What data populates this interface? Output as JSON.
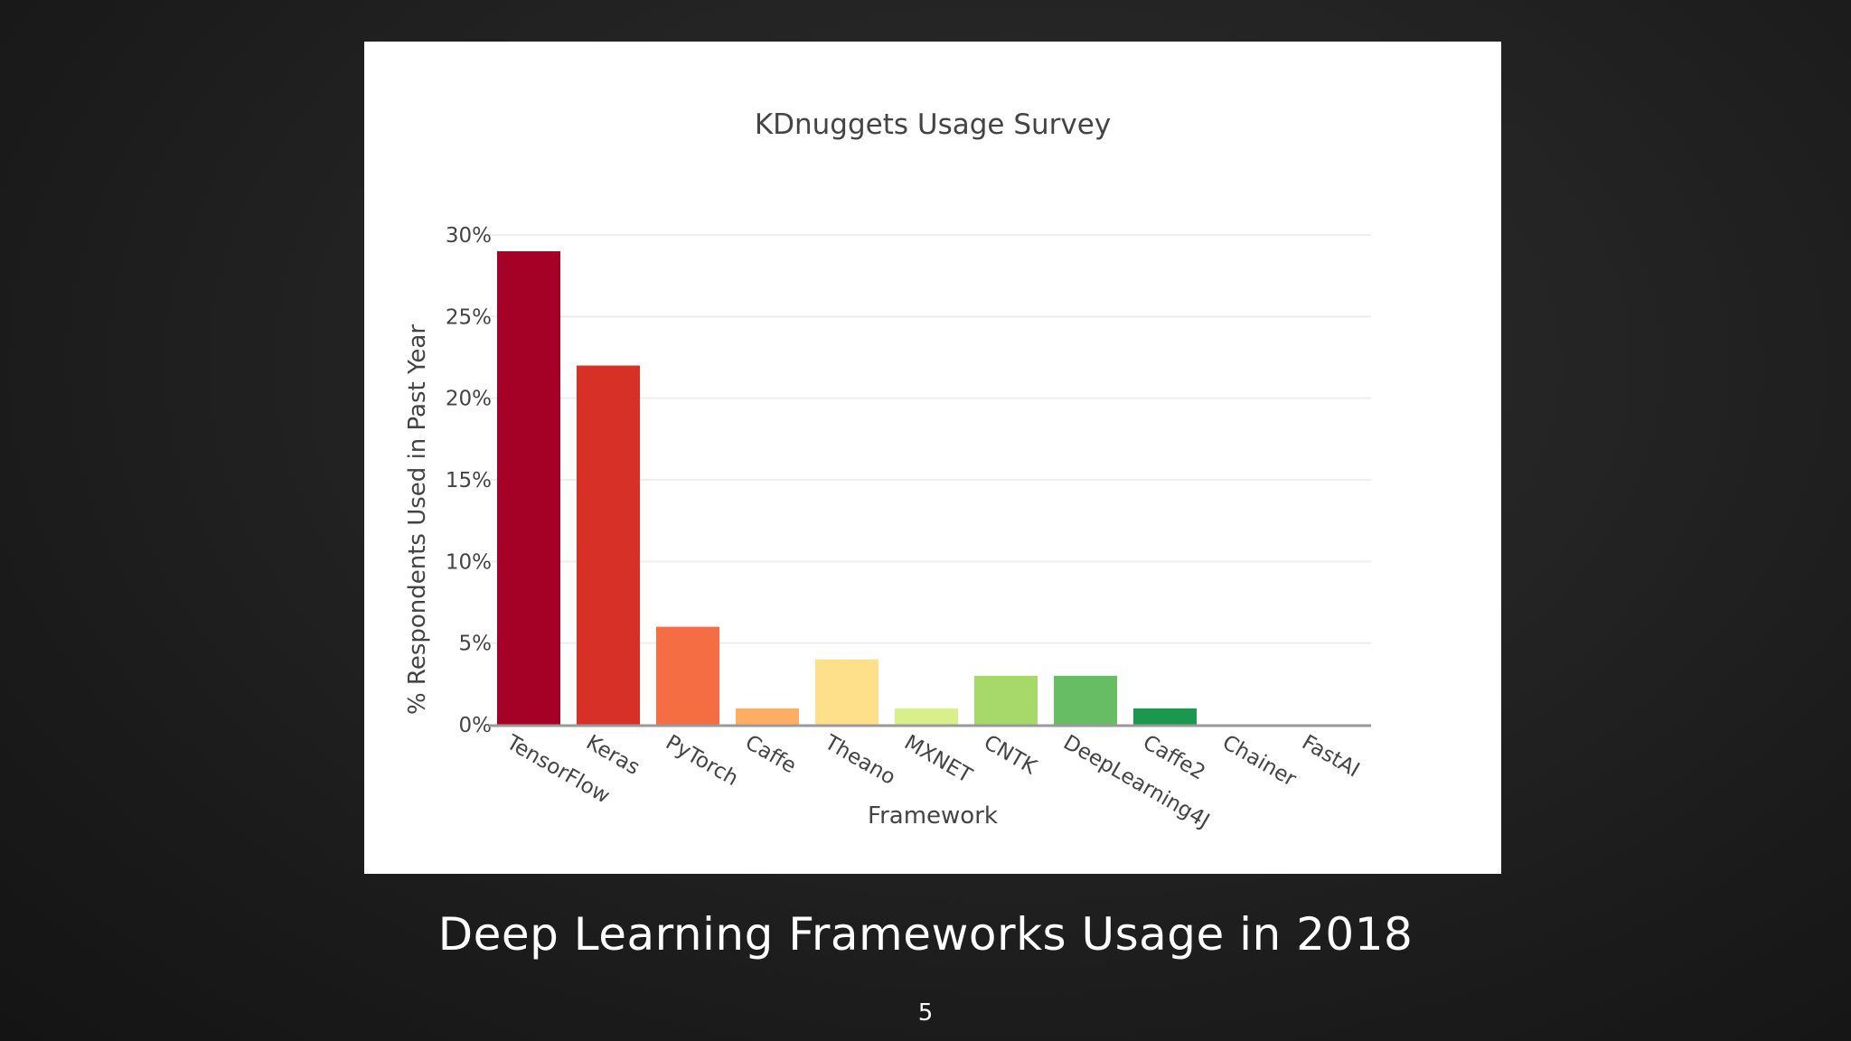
{
  "slide": {
    "title": "Deep Learning Frameworks Usage in 2018",
    "page_number": "5"
  },
  "chart_data": {
    "type": "bar",
    "title": "KDnuggets Usage Survey",
    "xlabel": "Framework",
    "ylabel": "% Respondents Used in Past Year",
    "categories": [
      "TensorFlow",
      "Keras",
      "PyTorch",
      "Caffe",
      "Theano",
      "MXNET",
      "CNTK",
      "DeepLearning4J",
      "Caffe2",
      "Chainer",
      "FastAI"
    ],
    "values": [
      29,
      22,
      6,
      1,
      4,
      1,
      3,
      3,
      1,
      0,
      0
    ],
    "colors": [
      "#a50026",
      "#d73027",
      "#f46d43",
      "#fdae61",
      "#fee08b",
      "#d9ef8b",
      "#a6d96a",
      "#66bd63",
      "#1a9850",
      "#006837",
      "#006837"
    ],
    "ylim": [
      0,
      30
    ],
    "yticks": [
      0,
      5,
      10,
      15,
      20,
      25,
      30
    ],
    "ytick_labels": [
      "0%",
      "5%",
      "10%",
      "15%",
      "20%",
      "25%",
      "30%"
    ],
    "grid": true,
    "legend": "none"
  }
}
